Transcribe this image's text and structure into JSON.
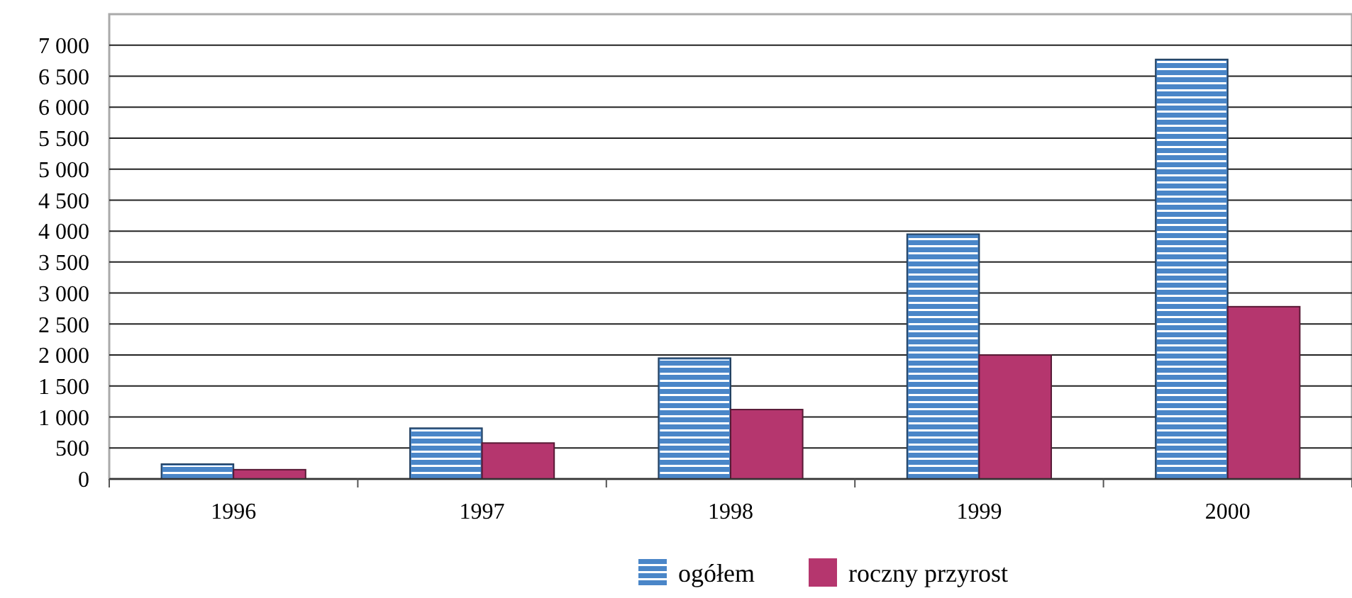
{
  "chart_data": {
    "type": "bar",
    "categories": [
      "1996",
      "1997",
      "1998",
      "1999",
      "2000"
    ],
    "series": [
      {
        "name": "ogółem",
        "color": "#4a86c8",
        "values": [
          240,
          820,
          1950,
          3950,
          6770
        ]
      },
      {
        "name": "roczny przyrost",
        "color": "#b5366e",
        "values": [
          150,
          580,
          1120,
          2000,
          2780
        ]
      }
    ],
    "ylim": [
      0,
      7500
    ],
    "yticks": [
      0,
      {
        "value": 500,
        "label": "500"
      },
      {
        "value": 1000,
        "label": "1 000"
      },
      {
        "value": 1500,
        "label": "1 500"
      },
      {
        "value": 2000,
        "label": "2 000"
      },
      {
        "value": 2500,
        "label": "2 500"
      },
      {
        "value": 3000,
        "label": "3 000"
      },
      {
        "value": 3500,
        "label": "3 500"
      },
      {
        "value": 4000,
        "label": "4 000"
      },
      {
        "value": 4500,
        "label": "4 500"
      },
      {
        "value": 5000,
        "label": "5 000"
      },
      {
        "value": 5500,
        "label": "5 500"
      },
      {
        "value": 6000,
        "label": "6 000"
      },
      {
        "value": 6500,
        "label": "6 500"
      },
      {
        "value": 7000,
        "label": "7 000"
      }
    ],
    "grid": "y",
    "legend": "bottom"
  }
}
